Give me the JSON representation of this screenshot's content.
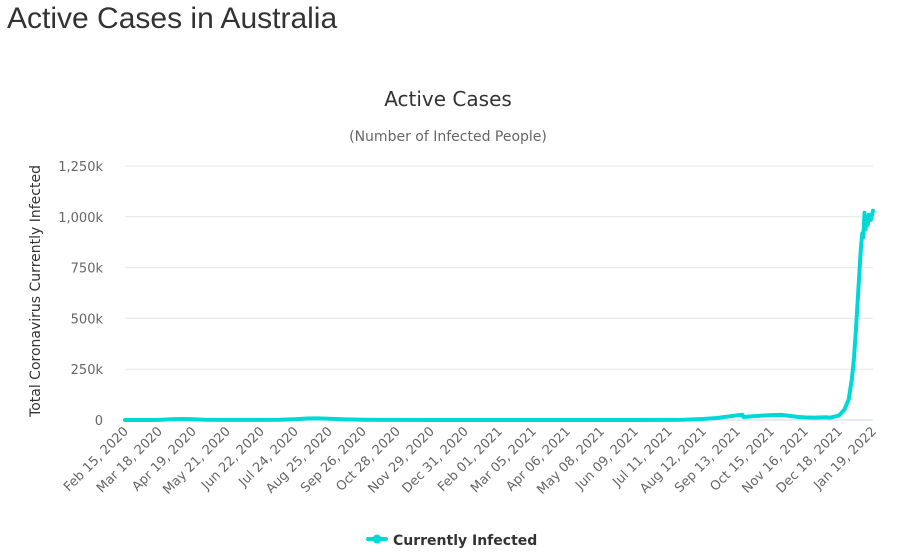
{
  "page": {
    "title": "Active Cases in Australia"
  },
  "chart_data": {
    "type": "line",
    "title": "Active Cases",
    "subtitle": "(Number of Infected People)",
    "xlabel": "",
    "ylabel": "Total Coronavirus Currently Infected",
    "ylim": [
      0,
      1250000
    ],
    "yticks": [
      {
        "value": 0,
        "label": "0"
      },
      {
        "value": 250000,
        "label": "250k"
      },
      {
        "value": 500000,
        "label": "500k"
      },
      {
        "value": 750000,
        "label": "750k"
      },
      {
        "value": 1000000,
        "label": "1,000k"
      },
      {
        "value": 1250000,
        "label": "1,250k"
      }
    ],
    "grid": true,
    "legend_placement": "bottom-center",
    "colors": {
      "series": "#00d8d8",
      "grid": "#e6e6e6",
      "axis_text": "#666666"
    },
    "xlim": [
      "2020-02-15",
      "2022-01-19"
    ],
    "xtick_labels": [
      {
        "date": "2020-02-15",
        "label": "Feb 15, 2020"
      },
      {
        "date": "2020-03-18",
        "label": "Mar 18, 2020"
      },
      {
        "date": "2020-04-19",
        "label": "Apr 19, 2020"
      },
      {
        "date": "2020-05-21",
        "label": "May 21, 2020"
      },
      {
        "date": "2020-06-22",
        "label": "Jun 22, 2020"
      },
      {
        "date": "2020-07-24",
        "label": "Jul 24, 2020"
      },
      {
        "date": "2020-08-25",
        "label": "Aug 25, 2020"
      },
      {
        "date": "2020-09-26",
        "label": "Sep 26, 2020"
      },
      {
        "date": "2020-10-28",
        "label": "Oct 28, 2020"
      },
      {
        "date": "2020-11-29",
        "label": "Nov 29, 2020"
      },
      {
        "date": "2020-12-31",
        "label": "Dec 31, 2020"
      },
      {
        "date": "2021-02-01",
        "label": "Feb 01, 2021"
      },
      {
        "date": "2021-03-05",
        "label": "Mar 05, 2021"
      },
      {
        "date": "2021-04-06",
        "label": "Apr 06, 2021"
      },
      {
        "date": "2021-05-08",
        "label": "May 08, 2021"
      },
      {
        "date": "2021-06-09",
        "label": "Jun 09, 2021"
      },
      {
        "date": "2021-07-11",
        "label": "Jul 11, 2021"
      },
      {
        "date": "2021-08-12",
        "label": "Aug 12, 2021"
      },
      {
        "date": "2021-09-13",
        "label": "Sep 13, 2021"
      },
      {
        "date": "2021-10-15",
        "label": "Oct 15, 2021"
      },
      {
        "date": "2021-11-16",
        "label": "Nov 16, 2021"
      },
      {
        "date": "2021-12-18",
        "label": "Dec 18, 2021"
      },
      {
        "date": "2022-01-19",
        "label": "Jan 19, 2022"
      }
    ],
    "series": [
      {
        "name": "Currently Infected",
        "points": [
          [
            "2020-02-15",
            10
          ],
          [
            "2020-03-01",
            100
          ],
          [
            "2020-03-18",
            400
          ],
          [
            "2020-04-01",
            4500
          ],
          [
            "2020-04-10",
            5000
          ],
          [
            "2020-04-19",
            4000
          ],
          [
            "2020-05-01",
            1500
          ],
          [
            "2020-05-21",
            500
          ],
          [
            "2020-06-22",
            400
          ],
          [
            "2020-07-10",
            1000
          ],
          [
            "2020-07-24",
            3500
          ],
          [
            "2020-08-05",
            7500
          ],
          [
            "2020-08-15",
            8000
          ],
          [
            "2020-08-25",
            6500
          ],
          [
            "2020-09-10",
            3000
          ],
          [
            "2020-09-26",
            1200
          ],
          [
            "2020-10-28",
            400
          ],
          [
            "2020-11-29",
            150
          ],
          [
            "2020-12-31",
            200
          ],
          [
            "2021-02-01",
            200
          ],
          [
            "2021-03-05",
            150
          ],
          [
            "2021-04-06",
            150
          ],
          [
            "2021-05-08",
            150
          ],
          [
            "2021-06-09",
            150
          ],
          [
            "2021-07-11",
            500
          ],
          [
            "2021-07-25",
            1500
          ],
          [
            "2021-08-12",
            5000
          ],
          [
            "2021-08-25",
            10000
          ],
          [
            "2021-09-05",
            17000
          ],
          [
            "2021-09-13",
            23000
          ],
          [
            "2021-09-18",
            26000
          ],
          [
            "2021-09-19",
            15000
          ],
          [
            "2021-09-25",
            17000
          ],
          [
            "2021-10-05",
            21000
          ],
          [
            "2021-10-15",
            24000
          ],
          [
            "2021-10-25",
            25000
          ],
          [
            "2021-11-01",
            20000
          ],
          [
            "2021-11-10",
            15000
          ],
          [
            "2021-11-16",
            13000
          ],
          [
            "2021-11-25",
            12000
          ],
          [
            "2021-12-05",
            14000
          ],
          [
            "2021-12-10",
            12000
          ],
          [
            "2021-12-18",
            22000
          ],
          [
            "2021-12-23",
            50000
          ],
          [
            "2021-12-27",
            100000
          ],
          [
            "2021-12-30",
            200000
          ],
          [
            "2022-01-01",
            300000
          ],
          [
            "2022-01-03",
            450000
          ],
          [
            "2022-01-05",
            620000
          ],
          [
            "2022-01-07",
            800000
          ],
          [
            "2022-01-08",
            870000
          ],
          [
            "2022-01-09",
            920000
          ],
          [
            "2022-01-10",
            900000
          ],
          [
            "2022-01-11",
            1020000
          ],
          [
            "2022-01-12",
            940000
          ],
          [
            "2022-01-13",
            990000
          ],
          [
            "2022-01-14",
            960000
          ],
          [
            "2022-01-15",
            1010000
          ],
          [
            "2022-01-17",
            985000
          ],
          [
            "2022-01-19",
            1030000
          ]
        ]
      }
    ]
  }
}
